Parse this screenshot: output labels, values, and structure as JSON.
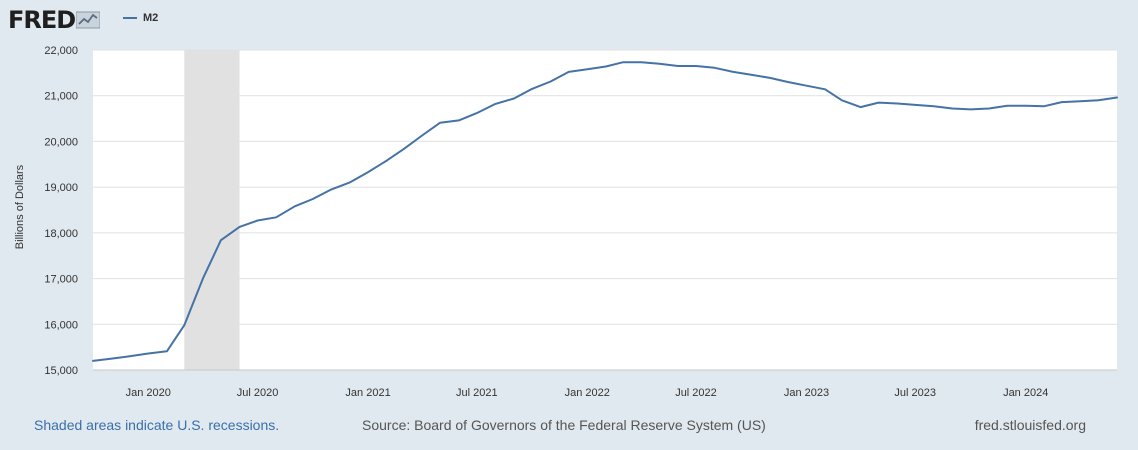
{
  "header": {
    "logo_text": "FRED",
    "logo_icon": "trend-chart-icon",
    "legend_label": "M2",
    "series_color": "#4572a7"
  },
  "footer": {
    "recession_note": "Shaded areas indicate U.S. recessions.",
    "source": "Source: Board of Governors of the Federal Reserve System (US)",
    "site": "fred.stlouisfed.org"
  },
  "chart_data": {
    "type": "line",
    "title": "",
    "xlabel": "",
    "ylabel": "Billions of Dollars",
    "ylim": [
      15000,
      22000
    ],
    "xlim": [
      "2019-10-01",
      "2024-06-01"
    ],
    "y_ticks": [
      15000,
      16000,
      17000,
      18000,
      19000,
      20000,
      21000,
      22000
    ],
    "y_tick_labels": [
      "15,000",
      "16,000",
      "17,000",
      "18,000",
      "19,000",
      "20,000",
      "21,000",
      "22,000"
    ],
    "x_ticks": [
      "2020-01-01",
      "2020-07-01",
      "2021-01-01",
      "2021-07-01",
      "2022-01-01",
      "2022-07-01",
      "2023-01-01",
      "2023-07-01",
      "2024-01-01"
    ],
    "x_tick_labels": [
      "Jan 2020",
      "Jul 2020",
      "Jan 2021",
      "Jul 2021",
      "Jan 2022",
      "Jul 2022",
      "Jan 2023",
      "Jul 2023",
      "Jan 2024"
    ],
    "grid": true,
    "legend_position": "top-left",
    "recession_shading": [
      {
        "start": "2020-03-01",
        "end": "2020-05-01",
        "color": "#e1e1e1"
      }
    ],
    "series": [
      {
        "name": "M2",
        "color": "#4572a7",
        "x": [
          "2019-10-01",
          "2019-11-01",
          "2019-12-01",
          "2020-01-01",
          "2020-02-01",
          "2020-03-01",
          "2020-04-01",
          "2020-05-01",
          "2020-06-01",
          "2020-07-01",
          "2020-08-01",
          "2020-09-01",
          "2020-10-01",
          "2020-11-01",
          "2020-12-01",
          "2021-01-01",
          "2021-02-01",
          "2021-03-01",
          "2021-04-01",
          "2021-05-01",
          "2021-06-01",
          "2021-07-01",
          "2021-08-01",
          "2021-09-01",
          "2021-10-01",
          "2021-11-01",
          "2021-12-01",
          "2022-01-01",
          "2022-02-01",
          "2022-03-01",
          "2022-04-01",
          "2022-05-01",
          "2022-06-01",
          "2022-07-01",
          "2022-08-01",
          "2022-09-01",
          "2022-10-01",
          "2022-11-01",
          "2022-12-01",
          "2023-01-01",
          "2023-02-01",
          "2023-03-01",
          "2023-04-01",
          "2023-05-01",
          "2023-06-01",
          "2023-07-01",
          "2023-08-01",
          "2023-09-01",
          "2023-10-01",
          "2023-11-01",
          "2023-12-01",
          "2024-01-01",
          "2024-02-01",
          "2024-03-01",
          "2024-04-01",
          "2024-05-01",
          "2024-06-01"
        ],
        "values": [
          15200,
          15250,
          15300,
          15360,
          15410,
          15980,
          17000,
          17840,
          18130,
          18270,
          18340,
          18580,
          18740,
          18950,
          19100,
          19330,
          19580,
          19830,
          20130,
          20410,
          20460,
          20620,
          20820,
          20940,
          21150,
          21310,
          21520,
          21580,
          21640,
          21730,
          21730,
          21700,
          21650,
          21650,
          21610,
          21520,
          21460,
          21390,
          21300,
          21220,
          21140,
          20900,
          20750,
          20850,
          20830,
          20800,
          20770,
          20720,
          20700,
          20720,
          20780,
          20780,
          20770,
          20860,
          20880,
          20900,
          20960
        ]
      }
    ]
  }
}
